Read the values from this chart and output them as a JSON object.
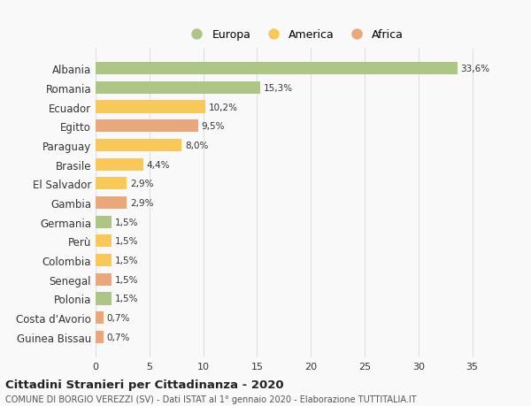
{
  "categories": [
    "Albania",
    "Romania",
    "Ecuador",
    "Egitto",
    "Paraguay",
    "Brasile",
    "El Salvador",
    "Gambia",
    "Germania",
    "Perù",
    "Colombia",
    "Senegal",
    "Polonia",
    "Costa d'Avorio",
    "Guinea Bissau"
  ],
  "values": [
    33.6,
    15.3,
    10.2,
    9.5,
    8.0,
    4.4,
    2.9,
    2.9,
    1.5,
    1.5,
    1.5,
    1.5,
    1.5,
    0.7,
    0.7
  ],
  "colors": [
    "#adc688",
    "#adc688",
    "#f9c85a",
    "#e8a87c",
    "#f9c85a",
    "#f9c85a",
    "#f9c85a",
    "#e8a87c",
    "#adc688",
    "#f9c85a",
    "#f9c85a",
    "#e8a87c",
    "#adc688",
    "#e8a87c",
    "#e8a87c"
  ],
  "labels": [
    "33,6%",
    "15,3%",
    "10,2%",
    "9,5%",
    "8,0%",
    "4,4%",
    "2,9%",
    "2,9%",
    "1,5%",
    "1,5%",
    "1,5%",
    "1,5%",
    "1,5%",
    "0,7%",
    "0,7%"
  ],
  "legend": [
    {
      "label": "Europa",
      "color": "#adc688"
    },
    {
      "label": "America",
      "color": "#f9c85a"
    },
    {
      "label": "Africa",
      "color": "#e8a87c"
    }
  ],
  "title": "Cittadini Stranieri per Cittadinanza - 2020",
  "subtitle": "COMUNE DI BORGIO VEREZZI (SV) - Dati ISTAT al 1° gennaio 2020 - Elaborazione TUTTITALIA.IT",
  "xlim": [
    0,
    37
  ],
  "xticks": [
    0,
    5,
    10,
    15,
    20,
    25,
    30,
    35
  ],
  "background_color": "#f9f9f9",
  "grid_color": "#e0e0e0"
}
